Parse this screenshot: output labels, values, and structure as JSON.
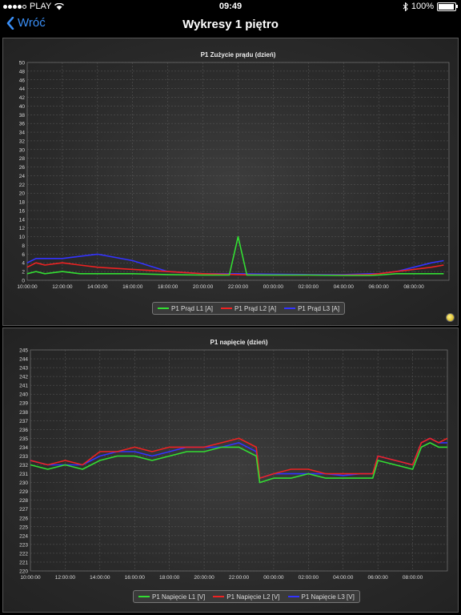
{
  "status": {
    "carrier": "PLAY",
    "time": "09:49",
    "battery": "100%",
    "battery_level": 1.0
  },
  "nav": {
    "back_label": "Wróć",
    "title": "Wykresy 1 piętro"
  },
  "colors": {
    "L1": "#33dd33",
    "L2": "#ee2222",
    "L3": "#3333ff",
    "accent": "#3a8ff7"
  },
  "chart_data": [
    {
      "type": "line",
      "title": "P1 Zużycie prądu (dzień)",
      "ylim": [
        0,
        50
      ],
      "yticks": [
        "0",
        "2",
        "4",
        "6",
        "8",
        "10",
        "12",
        "14",
        "16",
        "18",
        "20",
        "22",
        "24",
        "26",
        "28",
        "30",
        "32",
        "34",
        "36",
        "38",
        "40",
        "42",
        "44",
        "46",
        "48",
        "50"
      ],
      "xlim_hours": [
        10,
        34
      ],
      "xticks": [
        "10:00:00",
        "12:00:00",
        "14:00:00",
        "16:00:00",
        "18:00:00",
        "20:00:00",
        "22:00:00",
        "00:00:00",
        "02:00:00",
        "04:00:00",
        "06:00:00",
        "08:00:00"
      ],
      "grid": true,
      "legend_position": "bottom",
      "series": [
        {
          "name": "P1 Prąd L1 [A]",
          "x": [
            10,
            10.5,
            11,
            12,
            13,
            14,
            16,
            18,
            20,
            21.5,
            22,
            22.5,
            23,
            24,
            26,
            28,
            29.5,
            30,
            31,
            32,
            33,
            33.7
          ],
          "y": [
            1.5,
            2,
            1.5,
            2,
            1.5,
            1.5,
            1.5,
            1.3,
            1.2,
            1.2,
            10,
            1.2,
            1.2,
            1.2,
            1.2,
            1.1,
            1.1,
            1.2,
            1.5,
            1.5,
            1.5,
            1.5
          ]
        },
        {
          "name": "P1 Prąd L2 [A]",
          "x": [
            10,
            10.5,
            11,
            12,
            13,
            14,
            16,
            18,
            20,
            22,
            24,
            26,
            28,
            29.5,
            30,
            31,
            32,
            33,
            33.7
          ],
          "y": [
            3,
            4,
            3.5,
            4,
            3.5,
            3,
            2.5,
            2,
            1.5,
            1.3,
            1.2,
            1.2,
            1.2,
            1.3,
            1.5,
            2,
            2.5,
            3,
            3.5
          ]
        },
        {
          "name": "P1 Prąd L3 [A]",
          "x": [
            10,
            10.5,
            11,
            12,
            13,
            14,
            16,
            18,
            20,
            22,
            24,
            26,
            28,
            29.5,
            30,
            31,
            32,
            33,
            33.7
          ],
          "y": [
            4,
            5,
            5,
            5,
            5.5,
            6,
            4.5,
            2,
            1.5,
            1.5,
            1.4,
            1.3,
            1.3,
            1.5,
            1.5,
            2,
            3,
            4,
            4.5
          ]
        }
      ]
    },
    {
      "type": "line",
      "title": "P1 napięcie (dzień)",
      "ylim": [
        220,
        245
      ],
      "yticks": [
        "220",
        "221",
        "222",
        "223",
        "224",
        "225",
        "226",
        "227",
        "228",
        "229",
        "230",
        "231",
        "232",
        "233",
        "234",
        "235",
        "236",
        "237",
        "238",
        "239",
        "240",
        "241",
        "242",
        "243",
        "244",
        "245"
      ],
      "xlim_hours": [
        10,
        34
      ],
      "xticks": [
        "10:00:00",
        "12:00:00",
        "14:00:00",
        "16:00:00",
        "18:00:00",
        "20:00:00",
        "22:00:00",
        "00:00:00",
        "02:00:00",
        "04:00:00",
        "06:00:00",
        "08:00:00"
      ],
      "grid": true,
      "legend_position": "bottom",
      "series": [
        {
          "name": "P1 Napięcie L1 [V]",
          "x": [
            10,
            11,
            12,
            13,
            14,
            15,
            16,
            17,
            18,
            19,
            20,
            21,
            22,
            23,
            23.2,
            24,
            25,
            26,
            27,
            28,
            29,
            29.7,
            30,
            31,
            32,
            32.5,
            33,
            33.5,
            34
          ],
          "y": [
            232,
            231.5,
            232,
            231.5,
            232.5,
            233,
            233,
            232.5,
            233,
            233.5,
            233.5,
            234,
            234,
            233,
            230,
            230.5,
            230.5,
            231,
            230.5,
            230.5,
            230.5,
            230.5,
            232.5,
            232,
            231.5,
            234,
            234.5,
            234,
            234
          ]
        },
        {
          "name": "P1 Napięcie L2 [V]",
          "x": [
            10,
            11,
            12,
            13,
            14,
            15,
            16,
            17,
            18,
            19,
            20,
            21,
            22,
            23,
            23.2,
            24,
            25,
            26,
            27,
            28,
            29,
            29.7,
            30,
            31,
            32,
            32.5,
            33,
            33.5,
            34
          ],
          "y": [
            232.5,
            232,
            232.5,
            232,
            233.5,
            233.5,
            234,
            233.5,
            234,
            234,
            234,
            234.5,
            235,
            234,
            230.5,
            231,
            231.5,
            231.5,
            231,
            231,
            231,
            231,
            233,
            232.5,
            232,
            234.5,
            235,
            234.5,
            235
          ]
        },
        {
          "name": "P1 Napięcie L3 [V]",
          "x": [
            10,
            11,
            12,
            13,
            14,
            15,
            16,
            17,
            18,
            19,
            20,
            21,
            22,
            23,
            23.2,
            24,
            25,
            26,
            27,
            28,
            29,
            29.7,
            30,
            31,
            32,
            32.5,
            33,
            33.5,
            34
          ],
          "y": [
            232.5,
            232,
            232,
            232,
            233,
            233.5,
            233.5,
            233,
            233.5,
            234,
            234,
            234,
            234.5,
            233.5,
            230.5,
            231,
            231,
            231,
            231,
            230.8,
            231,
            231,
            233,
            232.5,
            232,
            234.5,
            235,
            234.5,
            234.5
          ]
        }
      ]
    }
  ]
}
